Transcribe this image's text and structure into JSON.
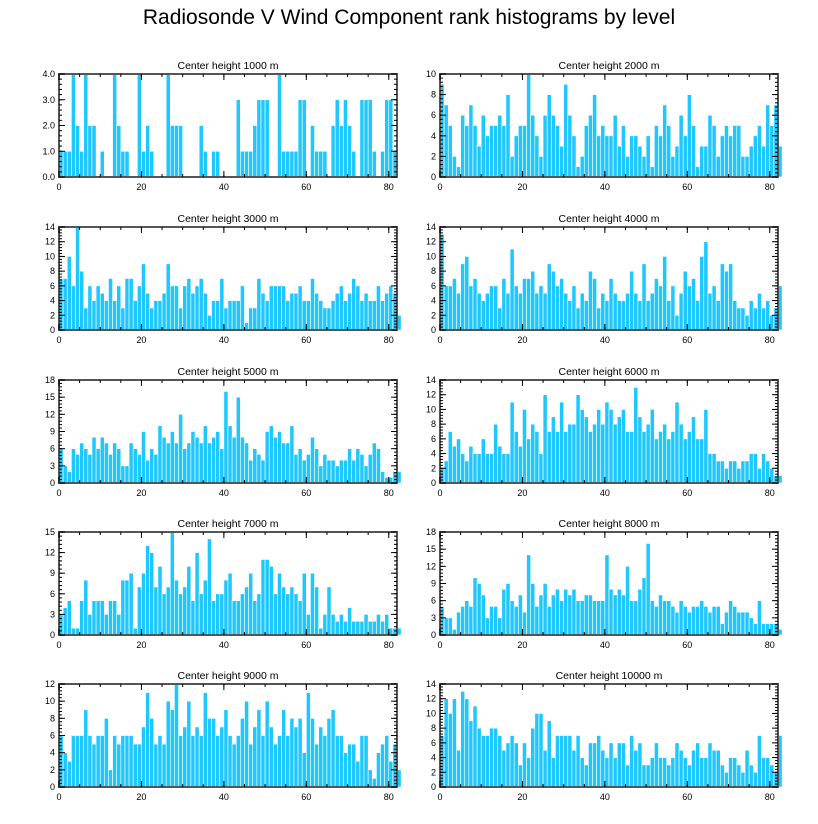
{
  "title": "Radiosonde V Wind Component rank histograms by level",
  "colors": {
    "bar_fill": "#1ec8ff",
    "bar_edge": "#ffffff",
    "axis": "#000000",
    "frame": "#555555"
  },
  "chart_data": [
    {
      "type": "bar",
      "title": "Center height 1000 m",
      "xlim": [
        0,
        82
      ],
      "xticks": [
        "0",
        "20",
        "40",
        "60",
        "80"
      ],
      "ylim": [
        0,
        4
      ],
      "yticks": [
        "0.0",
        "1.0",
        "2.0",
        "3.0",
        "4.0"
      ],
      "values": [
        1,
        1,
        1,
        4,
        2,
        1,
        4,
        2,
        2,
        0,
        1,
        0,
        0,
        4,
        2,
        1,
        1,
        0,
        0,
        4,
        1,
        2,
        1,
        0,
        0,
        0,
        4,
        2,
        2,
        2,
        0,
        0,
        0,
        0,
        2,
        1,
        0,
        1,
        1,
        0,
        0,
        0,
        0,
        3,
        1,
        1,
        1,
        2,
        3,
        3,
        3,
        0,
        0,
        4,
        1,
        1,
        1,
        1,
        3,
        3,
        0,
        2,
        1,
        1,
        1,
        0,
        2,
        3,
        2,
        3,
        2,
        1,
        0,
        3,
        3,
        3,
        1,
        0,
        1,
        3,
        3,
        1,
        0
      ]
    },
    {
      "type": "bar",
      "title": "Center height 2000 m",
      "xlim": [
        0,
        82
      ],
      "xticks": [
        "0",
        "20",
        "40",
        "60",
        "80"
      ],
      "ylim": [
        0,
        10
      ],
      "yticks": [
        "0",
        "2",
        "4",
        "6",
        "8",
        "10"
      ],
      "values": [
        9,
        7,
        5,
        2,
        1,
        6,
        5,
        7,
        5,
        3,
        6,
        4,
        5,
        5,
        6,
        5,
        8,
        2,
        4,
        5,
        5,
        10,
        6,
        4,
        2,
        6,
        8,
        6,
        5,
        3,
        9,
        6,
        4,
        1,
        2,
        5,
        6,
        8,
        4,
        5,
        4,
        4,
        6,
        3,
        5,
        2,
        4,
        4,
        3,
        2,
        4,
        1,
        5,
        4,
        7,
        5,
        2,
        3,
        6,
        4,
        8,
        5,
        1,
        3,
        3,
        6,
        5,
        2,
        4,
        5,
        4,
        5,
        5,
        2,
        2,
        3,
        4,
        5,
        3,
        7,
        5,
        7,
        3
      ]
    },
    {
      "type": "bar",
      "title": "Center height 3000 m",
      "xlim": [
        0,
        82
      ],
      "xticks": [
        "0",
        "20",
        "40",
        "60",
        "80"
      ],
      "ylim": [
        0,
        14
      ],
      "yticks": [
        "0",
        "2",
        "4",
        "6",
        "8",
        "10",
        "12",
        "14"
      ],
      "values": [
        7,
        7,
        10,
        6,
        14,
        8,
        3,
        6,
        4,
        6,
        5,
        4,
        7,
        4,
        6,
        3,
        7,
        7,
        4,
        6,
        9,
        5,
        3,
        4,
        4,
        5,
        9,
        6,
        6,
        3,
        6,
        7,
        5,
        6,
        7,
        5,
        2,
        4,
        4,
        7,
        3,
        4,
        4,
        4,
        6,
        1,
        3,
        3,
        7,
        5,
        4,
        6,
        6,
        6,
        6,
        4,
        5,
        5,
        6,
        4,
        4,
        7,
        5,
        4,
        3,
        3,
        4,
        5,
        6,
        4,
        5,
        7,
        6,
        4,
        5,
        4,
        4,
        6,
        4,
        5,
        6,
        5,
        2
      ]
    },
    {
      "type": "bar",
      "title": "Center height 4000 m",
      "xlim": [
        0,
        82
      ],
      "xticks": [
        "0",
        "20",
        "40",
        "60",
        "80"
      ],
      "ylim": [
        0,
        14
      ],
      "yticks": [
        "0",
        "2",
        "4",
        "6",
        "8",
        "10",
        "12",
        "14"
      ],
      "values": [
        13,
        6,
        6,
        7,
        5,
        9,
        10,
        6,
        7,
        5,
        4,
        5,
        6,
        6,
        3,
        7,
        5,
        11,
        6,
        5,
        7,
        7,
        8,
        5,
        6,
        5,
        9,
        8,
        6,
        7,
        5,
        4,
        6,
        3,
        5,
        4,
        8,
        7,
        3,
        5,
        4,
        7,
        5,
        4,
        4,
        5,
        8,
        5,
        4,
        9,
        4,
        5,
        7,
        6,
        10,
        4,
        6,
        2,
        5,
        8,
        6,
        7,
        4,
        10,
        12,
        5,
        6,
        4,
        9,
        8,
        9,
        4,
        3,
        3,
        2,
        4,
        3,
        5,
        3,
        4,
        2,
        3,
        6
      ]
    },
    {
      "type": "bar",
      "title": "Center height 5000 m",
      "xlim": [
        0,
        82
      ],
      "xticks": [
        "0",
        "20",
        "40",
        "60",
        "80"
      ],
      "ylim": [
        0,
        18
      ],
      "yticks": [
        "0",
        "3",
        "6",
        "9",
        "12",
        "15",
        "18"
      ],
      "values": [
        6,
        3,
        2,
        6,
        5,
        7,
        6,
        5,
        8,
        6,
        8,
        7,
        5,
        7,
        6,
        3,
        3,
        7,
        6,
        5,
        9,
        4,
        6,
        5,
        10,
        8,
        7,
        9,
        7,
        12,
        6,
        7,
        9,
        8,
        7,
        10,
        7,
        8,
        9,
        6,
        16,
        10,
        8,
        15,
        8,
        7,
        4,
        6,
        5,
        4,
        9,
        10,
        8,
        9,
        7,
        7,
        10,
        5,
        6,
        4,
        5,
        8,
        6,
        3,
        5,
        4,
        4,
        3,
        4,
        4,
        6,
        4,
        6,
        5,
        3,
        5,
        7,
        6,
        2,
        1,
        1,
        2,
        2
      ]
    },
    {
      "type": "bar",
      "title": "Center height 6000 m",
      "xlim": [
        0,
        82
      ],
      "xticks": [
        "0",
        "20",
        "40",
        "60",
        "80"
      ],
      "ylim": [
        0,
        14
      ],
      "yticks": [
        "0",
        "2",
        "4",
        "6",
        "8",
        "10",
        "12",
        "14"
      ],
      "values": [
        2,
        3,
        7,
        5,
        6,
        4,
        3,
        5,
        4,
        4,
        6,
        4,
        4,
        8,
        5,
        4,
        4,
        11,
        7,
        5,
        10,
        6,
        8,
        7,
        4,
        12,
        7,
        9,
        7,
        11,
        7,
        8,
        8,
        12,
        10,
        9,
        7,
        8,
        10,
        8,
        11,
        10,
        8,
        9,
        10,
        7,
        7,
        13,
        9,
        7,
        8,
        10,
        6,
        7,
        8,
        6,
        7,
        11,
        8,
        6,
        7,
        9,
        6,
        6,
        10,
        4,
        4,
        3,
        3,
        2,
        3,
        3,
        2,
        3,
        3,
        4,
        4,
        2,
        4,
        3,
        2,
        1,
        1
      ]
    },
    {
      "type": "bar",
      "title": "Center height 7000 m",
      "xlim": [
        0,
        82
      ],
      "xticks": [
        "0",
        "20",
        "40",
        "60",
        "80"
      ],
      "ylim": [
        0,
        15
      ],
      "yticks": [
        "0",
        "3",
        "6",
        "9",
        "12",
        "15"
      ],
      "values": [
        3,
        4,
        5,
        1,
        1,
        5,
        8,
        3,
        5,
        5,
        5,
        3,
        5,
        5,
        3,
        8,
        8,
        9,
        1,
        7,
        9,
        13,
        12,
        7,
        10,
        6,
        7,
        15,
        8,
        6,
        7,
        10,
        5,
        12,
        6,
        8,
        14,
        5,
        6,
        6,
        8,
        9,
        5,
        5,
        6,
        7,
        9,
        5,
        6,
        11,
        11,
        10,
        6,
        9,
        7,
        6,
        7,
        6,
        5,
        9,
        3,
        9,
        7,
        1,
        3,
        7,
        3,
        2,
        3,
        2,
        4,
        2,
        2,
        2,
        3,
        2,
        2,
        3,
        2,
        3,
        1,
        1,
        1
      ]
    },
    {
      "type": "bar",
      "title": "Center height 8000 m",
      "xlim": [
        0,
        82
      ],
      "xticks": [
        "0",
        "20",
        "40",
        "60",
        "80"
      ],
      "ylim": [
        0,
        18
      ],
      "yticks": [
        "0",
        "3",
        "6",
        "9",
        "12",
        "15",
        "18"
      ],
      "values": [
        5,
        3,
        3,
        1,
        4,
        5,
        6,
        5,
        10,
        9,
        7,
        3,
        5,
        5,
        3,
        8,
        9,
        6,
        5,
        7,
        4,
        14,
        9,
        5,
        7,
        9,
        5,
        7,
        8,
        6,
        8,
        7,
        8,
        6,
        6,
        7,
        7,
        6,
        6,
        6,
        14,
        8,
        7,
        8,
        7,
        12,
        6,
        6,
        8,
        10,
        16,
        6,
        5,
        7,
        6,
        6,
        5,
        4,
        6,
        5,
        4,
        5,
        5,
        6,
        5,
        4,
        5,
        5,
        2,
        4,
        6,
        5,
        4,
        4,
        4,
        3,
        2,
        6,
        2,
        2,
        2,
        2,
        1
      ]
    },
    {
      "type": "bar",
      "title": "Center height 9000 m",
      "xlim": [
        0,
        82
      ],
      "xticks": [
        "0",
        "20",
        "40",
        "60",
        "80"
      ],
      "ylim": [
        0,
        12
      ],
      "yticks": [
        "0",
        "2",
        "4",
        "6",
        "8",
        "10",
        "12"
      ],
      "values": [
        6,
        4,
        3,
        6,
        6,
        6,
        9,
        6,
        5,
        6,
        6,
        8,
        2,
        6,
        5,
        6,
        6,
        6,
        5,
        5,
        7,
        11,
        8,
        5,
        6,
        5,
        10,
        9,
        12,
        6,
        7,
        10,
        6,
        7,
        6,
        11,
        8,
        8,
        6,
        7,
        9,
        6,
        5,
        6,
        8,
        10,
        5,
        7,
        9,
        6,
        10,
        7,
        5,
        6,
        9,
        6,
        8,
        7,
        8,
        4,
        11,
        8,
        5,
        7,
        6,
        8,
        9,
        6,
        6,
        4,
        5,
        5,
        3,
        6,
        6,
        2,
        1,
        4,
        5,
        6,
        3,
        5,
        2
      ]
    },
    {
      "type": "bar",
      "title": "Center height 10000 m",
      "xlim": [
        0,
        82
      ],
      "xticks": [
        "0",
        "20",
        "40",
        "60",
        "80"
      ],
      "ylim": [
        0,
        14
      ],
      "yticks": [
        "0",
        "2",
        "4",
        "6",
        "8",
        "10",
        "12",
        "14"
      ],
      "values": [
        7,
        12,
        10,
        12,
        5,
        13,
        12,
        9,
        11,
        8,
        7,
        7,
        8,
        8,
        7,
        5,
        6,
        7,
        6,
        3,
        6,
        4,
        8,
        10,
        10,
        5,
        9,
        4,
        7,
        7,
        7,
        7,
        5,
        7,
        4,
        3,
        6,
        6,
        7,
        5,
        4,
        6,
        4,
        6,
        6,
        3,
        7,
        5,
        6,
        3,
        3,
        4,
        6,
        4,
        4,
        3,
        4,
        6,
        5,
        4,
        3,
        5,
        6,
        4,
        4,
        6,
        5,
        5,
        3,
        2,
        4,
        4,
        3,
        2,
        5,
        3,
        2,
        7,
        4,
        4,
        3,
        2,
        7
      ]
    }
  ]
}
